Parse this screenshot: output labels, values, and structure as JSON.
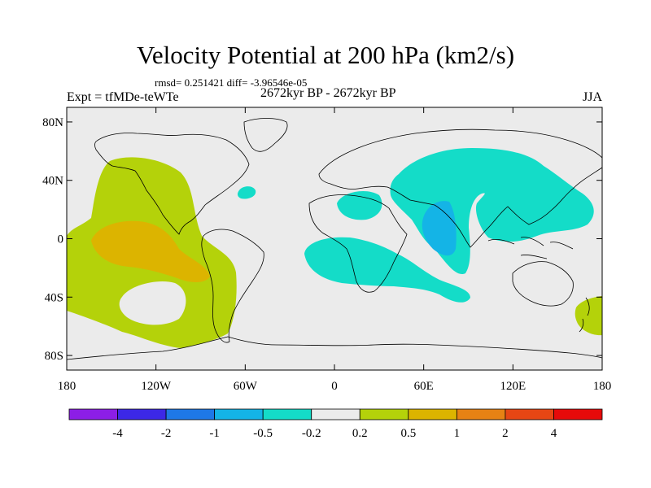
{
  "title": "Velocity Potential at 200 hPa (km2/s)",
  "stats": "rmsd= 0.251421 diff= -3.96546e-05",
  "left_label": "Expt = tfMDe-teWTe",
  "center_label": "2672kyr BP - 2672kyr BP",
  "right_label": "JJA",
  "map": {
    "lon_range": [
      -180,
      180
    ],
    "lat_range": [
      -90,
      90
    ],
    "x_ticks": [
      {
        "value": -180,
        "label": "180"
      },
      {
        "value": -120,
        "label": "120W"
      },
      {
        "value": -60,
        "label": "60W"
      },
      {
        "value": 0,
        "label": "0"
      },
      {
        "value": 60,
        "label": "60E"
      },
      {
        "value": 120,
        "label": "120E"
      },
      {
        "value": 180,
        "label": "180"
      }
    ],
    "y_ticks": [
      {
        "value": 80,
        "label": "80N"
      },
      {
        "value": 40,
        "label": "40N"
      },
      {
        "value": 0,
        "label": "0"
      },
      {
        "value": -40,
        "label": "40S"
      },
      {
        "value": -80,
        "label": "80S"
      }
    ],
    "background_color": "#ebebeb"
  },
  "colorbar": {
    "colors": [
      "#8c1ee6",
      "#3c28e6",
      "#1e78e6",
      "#14b4e6",
      "#14dcc8",
      "#ebebeb",
      "#b4d20a",
      "#dcb400",
      "#e68214",
      "#e64614",
      "#e60a0a"
    ],
    "labels": [
      "-4",
      "-2",
      "-1",
      "-0.5",
      "-0.2",
      "0.2",
      "0.5",
      "1",
      "2",
      "4"
    ]
  }
}
